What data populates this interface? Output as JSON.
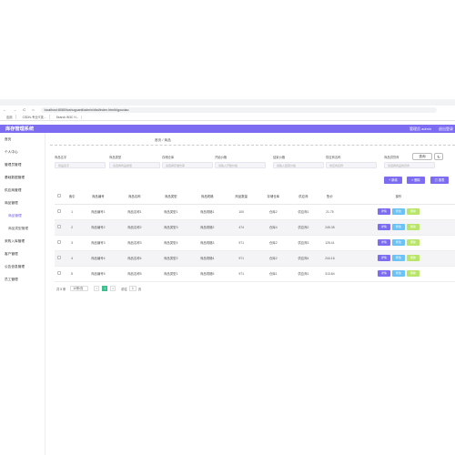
{
  "browser": {
    "nav_icons": "← → C ⌂",
    "url": "localhost:8080/tushuguanli/admin/dist/index.html#/gouxiao",
    "bookmarks": [
      "应用",
      "CSDN-专业IT技...",
      "Search W3C H..."
    ]
  },
  "app": {
    "title": "库存管理系统",
    "user_label": "管理员 admin",
    "logout": "退出登录"
  },
  "sidebar": {
    "items": [
      {
        "label": "首页",
        "sub": false,
        "active": false
      },
      {
        "label": "个人中心",
        "sub": false,
        "active": false
      },
      {
        "label": "管理员管理",
        "sub": false,
        "active": false
      },
      {
        "label": "基础数据管理",
        "sub": false,
        "active": false
      },
      {
        "label": "供应商管理",
        "sub": false,
        "active": false
      },
      {
        "label": "商品管理",
        "sub": false,
        "active": false
      },
      {
        "label": "商品管理",
        "sub": true,
        "active": true
      },
      {
        "label": "商品类型管理",
        "sub": true,
        "active": false
      },
      {
        "label": "采购入库管理",
        "sub": false,
        "active": false
      },
      {
        "label": "客户管理",
        "sub": false,
        "active": false
      },
      {
        "label": "公告信息管理",
        "sub": false,
        "active": false
      },
      {
        "label": "员工管理",
        "sub": false,
        "active": false
      }
    ]
  },
  "breadcrumb": "首页 / 商品",
  "filters": [
    {
      "label": "商品名字",
      "placeholder": "商品名字"
    },
    {
      "label": "商品类型",
      "placeholder": "请选择商品类型"
    },
    {
      "label": "存储仓库",
      "placeholder": "请选择存储仓库"
    },
    {
      "label": "开始价格",
      "placeholder": "请输入开始价格"
    },
    {
      "label": "结束价格",
      "placeholder": "请输入结束价格"
    },
    {
      "label": "供应商名称",
      "placeholder": "供应商名称"
    },
    {
      "label": "商品供货商",
      "placeholder": "请选择商品供货商"
    }
  ],
  "search_label": "查询",
  "actions": {
    "add": "新增",
    "del": "删除",
    "export": "报表"
  },
  "table": {
    "headers": [
      "索引",
      "商品编号",
      "商品名称",
      "商品类型",
      "商品规格",
      "商品数量",
      "存储仓库",
      "供应商",
      "售价",
      "操作"
    ],
    "rows": [
      [
        "1",
        "商品编号1",
        "商品名称1",
        "商品类型1",
        "商品规格1",
        "100",
        "仓库2",
        "供应商1",
        "21.75"
      ],
      [
        "2",
        "商品编号2",
        "商品名称2",
        "商品类型3",
        "商品规格2",
        "474",
        "仓库4",
        "供应商2",
        "245.35"
      ],
      [
        "3",
        "商品编号3",
        "商品名称3",
        "商品类型4",
        "商品规格3",
        "971",
        "仓库2",
        "供应商3",
        "125.41"
      ],
      [
        "4",
        "商品编号4",
        "商品名称4",
        "商品类型2",
        "商品规格4",
        "971",
        "仓库2",
        "供应商4",
        "244.16"
      ],
      [
        "5",
        "商品编号5",
        "商品名称5",
        "商品类型1",
        "商品规格5",
        "971",
        "仓库1",
        "供应商1",
        "313.84"
      ]
    ],
    "row_buttons": {
      "edit": "详情",
      "view": "修改",
      "delete": "删除"
    }
  },
  "pager": {
    "total": "共 5 条",
    "page_size": "10条/页",
    "prev": "<",
    "current": "1",
    "next": ">",
    "goto": "前往",
    "page": "1",
    "page_suffix": "页"
  },
  "colors": {
    "primary": "#7b6cf2",
    "info": "#6dc2f5",
    "success": "#b9e66a",
    "pager_active": "#3fbf8e"
  }
}
